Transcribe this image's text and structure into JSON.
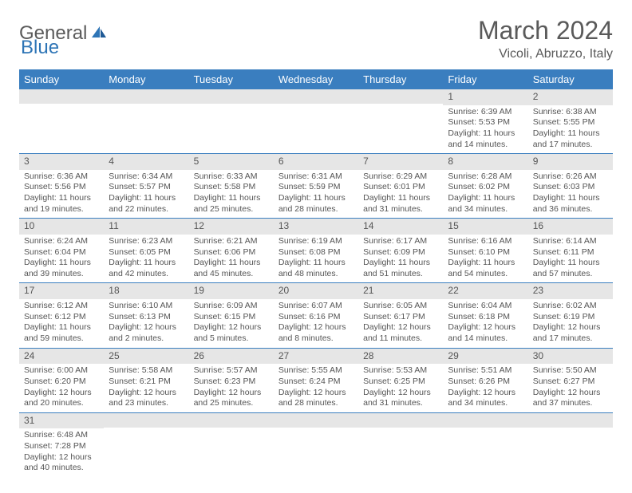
{
  "logo": {
    "general": "General",
    "blue": "Blue"
  },
  "title": "March 2024",
  "location": "Vicoli, Abruzzo, Italy",
  "colors": {
    "header_bg": "#3a7ebf",
    "header_text": "#ffffff",
    "daynum_bg": "#e6e6e6",
    "text": "#555555",
    "separator": "#3a7ebf",
    "logo_gray": "#5a5a5a",
    "logo_blue": "#2e75b6"
  },
  "day_names": [
    "Sunday",
    "Monday",
    "Tuesday",
    "Wednesday",
    "Thursday",
    "Friday",
    "Saturday"
  ],
  "weeks": [
    [
      null,
      null,
      null,
      null,
      null,
      {
        "n": "1",
        "sunrise": "Sunrise: 6:39 AM",
        "sunset": "Sunset: 5:53 PM",
        "daylight": "Daylight: 11 hours and 14 minutes."
      },
      {
        "n": "2",
        "sunrise": "Sunrise: 6:38 AM",
        "sunset": "Sunset: 5:55 PM",
        "daylight": "Daylight: 11 hours and 17 minutes."
      }
    ],
    [
      {
        "n": "3",
        "sunrise": "Sunrise: 6:36 AM",
        "sunset": "Sunset: 5:56 PM",
        "daylight": "Daylight: 11 hours and 19 minutes."
      },
      {
        "n": "4",
        "sunrise": "Sunrise: 6:34 AM",
        "sunset": "Sunset: 5:57 PM",
        "daylight": "Daylight: 11 hours and 22 minutes."
      },
      {
        "n": "5",
        "sunrise": "Sunrise: 6:33 AM",
        "sunset": "Sunset: 5:58 PM",
        "daylight": "Daylight: 11 hours and 25 minutes."
      },
      {
        "n": "6",
        "sunrise": "Sunrise: 6:31 AM",
        "sunset": "Sunset: 5:59 PM",
        "daylight": "Daylight: 11 hours and 28 minutes."
      },
      {
        "n": "7",
        "sunrise": "Sunrise: 6:29 AM",
        "sunset": "Sunset: 6:01 PM",
        "daylight": "Daylight: 11 hours and 31 minutes."
      },
      {
        "n": "8",
        "sunrise": "Sunrise: 6:28 AM",
        "sunset": "Sunset: 6:02 PM",
        "daylight": "Daylight: 11 hours and 34 minutes."
      },
      {
        "n": "9",
        "sunrise": "Sunrise: 6:26 AM",
        "sunset": "Sunset: 6:03 PM",
        "daylight": "Daylight: 11 hours and 36 minutes."
      }
    ],
    [
      {
        "n": "10",
        "sunrise": "Sunrise: 6:24 AM",
        "sunset": "Sunset: 6:04 PM",
        "daylight": "Daylight: 11 hours and 39 minutes."
      },
      {
        "n": "11",
        "sunrise": "Sunrise: 6:23 AM",
        "sunset": "Sunset: 6:05 PM",
        "daylight": "Daylight: 11 hours and 42 minutes."
      },
      {
        "n": "12",
        "sunrise": "Sunrise: 6:21 AM",
        "sunset": "Sunset: 6:06 PM",
        "daylight": "Daylight: 11 hours and 45 minutes."
      },
      {
        "n": "13",
        "sunrise": "Sunrise: 6:19 AM",
        "sunset": "Sunset: 6:08 PM",
        "daylight": "Daylight: 11 hours and 48 minutes."
      },
      {
        "n": "14",
        "sunrise": "Sunrise: 6:17 AM",
        "sunset": "Sunset: 6:09 PM",
        "daylight": "Daylight: 11 hours and 51 minutes."
      },
      {
        "n": "15",
        "sunrise": "Sunrise: 6:16 AM",
        "sunset": "Sunset: 6:10 PM",
        "daylight": "Daylight: 11 hours and 54 minutes."
      },
      {
        "n": "16",
        "sunrise": "Sunrise: 6:14 AM",
        "sunset": "Sunset: 6:11 PM",
        "daylight": "Daylight: 11 hours and 57 minutes."
      }
    ],
    [
      {
        "n": "17",
        "sunrise": "Sunrise: 6:12 AM",
        "sunset": "Sunset: 6:12 PM",
        "daylight": "Daylight: 11 hours and 59 minutes."
      },
      {
        "n": "18",
        "sunrise": "Sunrise: 6:10 AM",
        "sunset": "Sunset: 6:13 PM",
        "daylight": "Daylight: 12 hours and 2 minutes."
      },
      {
        "n": "19",
        "sunrise": "Sunrise: 6:09 AM",
        "sunset": "Sunset: 6:15 PM",
        "daylight": "Daylight: 12 hours and 5 minutes."
      },
      {
        "n": "20",
        "sunrise": "Sunrise: 6:07 AM",
        "sunset": "Sunset: 6:16 PM",
        "daylight": "Daylight: 12 hours and 8 minutes."
      },
      {
        "n": "21",
        "sunrise": "Sunrise: 6:05 AM",
        "sunset": "Sunset: 6:17 PM",
        "daylight": "Daylight: 12 hours and 11 minutes."
      },
      {
        "n": "22",
        "sunrise": "Sunrise: 6:04 AM",
        "sunset": "Sunset: 6:18 PM",
        "daylight": "Daylight: 12 hours and 14 minutes."
      },
      {
        "n": "23",
        "sunrise": "Sunrise: 6:02 AM",
        "sunset": "Sunset: 6:19 PM",
        "daylight": "Daylight: 12 hours and 17 minutes."
      }
    ],
    [
      {
        "n": "24",
        "sunrise": "Sunrise: 6:00 AM",
        "sunset": "Sunset: 6:20 PM",
        "daylight": "Daylight: 12 hours and 20 minutes."
      },
      {
        "n": "25",
        "sunrise": "Sunrise: 5:58 AM",
        "sunset": "Sunset: 6:21 PM",
        "daylight": "Daylight: 12 hours and 23 minutes."
      },
      {
        "n": "26",
        "sunrise": "Sunrise: 5:57 AM",
        "sunset": "Sunset: 6:23 PM",
        "daylight": "Daylight: 12 hours and 25 minutes."
      },
      {
        "n": "27",
        "sunrise": "Sunrise: 5:55 AM",
        "sunset": "Sunset: 6:24 PM",
        "daylight": "Daylight: 12 hours and 28 minutes."
      },
      {
        "n": "28",
        "sunrise": "Sunrise: 5:53 AM",
        "sunset": "Sunset: 6:25 PM",
        "daylight": "Daylight: 12 hours and 31 minutes."
      },
      {
        "n": "29",
        "sunrise": "Sunrise: 5:51 AM",
        "sunset": "Sunset: 6:26 PM",
        "daylight": "Daylight: 12 hours and 34 minutes."
      },
      {
        "n": "30",
        "sunrise": "Sunrise: 5:50 AM",
        "sunset": "Sunset: 6:27 PM",
        "daylight": "Daylight: 12 hours and 37 minutes."
      }
    ],
    [
      {
        "n": "31",
        "sunrise": "Sunrise: 6:48 AM",
        "sunset": "Sunset: 7:28 PM",
        "daylight": "Daylight: 12 hours and 40 minutes."
      },
      null,
      null,
      null,
      null,
      null,
      null
    ]
  ]
}
